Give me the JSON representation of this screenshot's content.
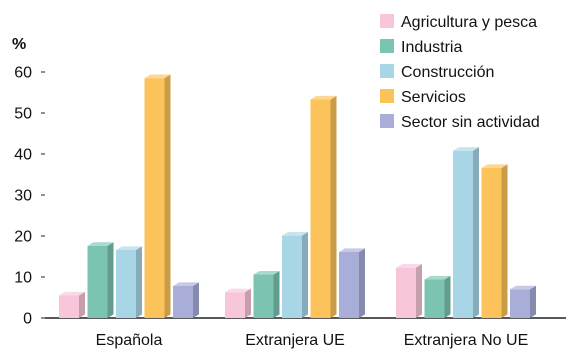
{
  "chart_data": {
    "type": "bar",
    "ylabel": "%",
    "ylim": [
      0,
      60
    ],
    "yticks": [
      0,
      10,
      20,
      30,
      40,
      50,
      60
    ],
    "grid": false,
    "legend_position": "top-right",
    "categories": [
      "Española",
      "Extranjera UE",
      "Extranjera No UE"
    ],
    "series": [
      {
        "name": "Agricultura y pesca",
        "color": "#f7c6da",
        "values": [
          5.5,
          6.3,
          12.3
        ]
      },
      {
        "name": "Industria",
        "color": "#7cc4b2",
        "values": [
          17.6,
          10.6,
          9.4
        ]
      },
      {
        "name": "Construcción",
        "color": "#a9d6e6",
        "values": [
          16.6,
          20.1,
          40.8
        ]
      },
      {
        "name": "Servicios",
        "color": "#fbc35a",
        "values": [
          58.5,
          53.3,
          36.6
        ]
      },
      {
        "name": "Sector sin actividad",
        "color": "#a8aed8",
        "values": [
          7.8,
          16.1,
          7.0
        ]
      }
    ]
  }
}
